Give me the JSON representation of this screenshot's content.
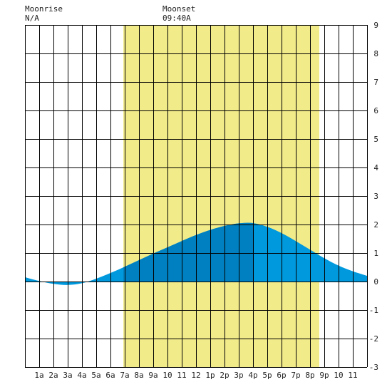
{
  "header": {
    "moonrise_label": "Moonrise",
    "moonrise_value": "N/A",
    "moonset_label": "Moonset",
    "moonset_value": "09:40A"
  },
  "colors": {
    "daylight": "#f2eb8a",
    "tide_day_rising": "#0080c0",
    "tide_other": "#0099dd",
    "grid": "#000000",
    "background": "#ffffff"
  },
  "chart_data": {
    "type": "area",
    "title": "",
    "xlabel": "",
    "ylabel": "",
    "x_unit": "hour of day",
    "xlim": [
      -1,
      23
    ],
    "ylim": [
      -3,
      9
    ],
    "grid": true,
    "x_ticks": [
      {
        "x": 0,
        "label": "1a"
      },
      {
        "x": 1,
        "label": "2a"
      },
      {
        "x": 2,
        "label": "3a"
      },
      {
        "x": 3,
        "label": "4a"
      },
      {
        "x": 4,
        "label": "5a"
      },
      {
        "x": 5,
        "label": "6a"
      },
      {
        "x": 6,
        "label": "7a"
      },
      {
        "x": 7,
        "label": "8a"
      },
      {
        "x": 8,
        "label": "9a"
      },
      {
        "x": 9,
        "label": "10"
      },
      {
        "x": 10,
        "label": "11"
      },
      {
        "x": 11,
        "label": "12"
      },
      {
        "x": 12,
        "label": "1p"
      },
      {
        "x": 13,
        "label": "2p"
      },
      {
        "x": 14,
        "label": "3p"
      },
      {
        "x": 15,
        "label": "4p"
      },
      {
        "x": 16,
        "label": "5p"
      },
      {
        "x": 17,
        "label": "6p"
      },
      {
        "x": 18,
        "label": "7p"
      },
      {
        "x": 19,
        "label": "8p"
      },
      {
        "x": 20,
        "label": "9p"
      },
      {
        "x": 21,
        "label": "10"
      },
      {
        "x": 22,
        "label": "11"
      }
    ],
    "y_ticks": [
      9,
      8,
      7,
      6,
      5,
      4,
      3,
      2,
      1,
      0,
      -1,
      -2,
      -3
    ],
    "daylight": [
      5.9,
      19.65
    ],
    "rising_shade": [
      5.9,
      15.0
    ],
    "tide": {
      "x": [
        -1,
        0,
        1,
        2,
        3,
        4,
        5,
        6,
        7,
        8,
        9,
        10,
        11,
        12,
        13,
        14,
        15,
        16,
        17,
        18,
        19,
        20,
        21,
        22,
        23
      ],
      "y": [
        0.15,
        0.02,
        -0.08,
        -0.12,
        -0.06,
        0.1,
        0.3,
        0.52,
        0.75,
        0.98,
        1.2,
        1.42,
        1.63,
        1.81,
        1.95,
        2.04,
        2.05,
        1.92,
        1.7,
        1.42,
        1.12,
        0.82,
        0.56,
        0.36,
        0.2
      ]
    }
  }
}
